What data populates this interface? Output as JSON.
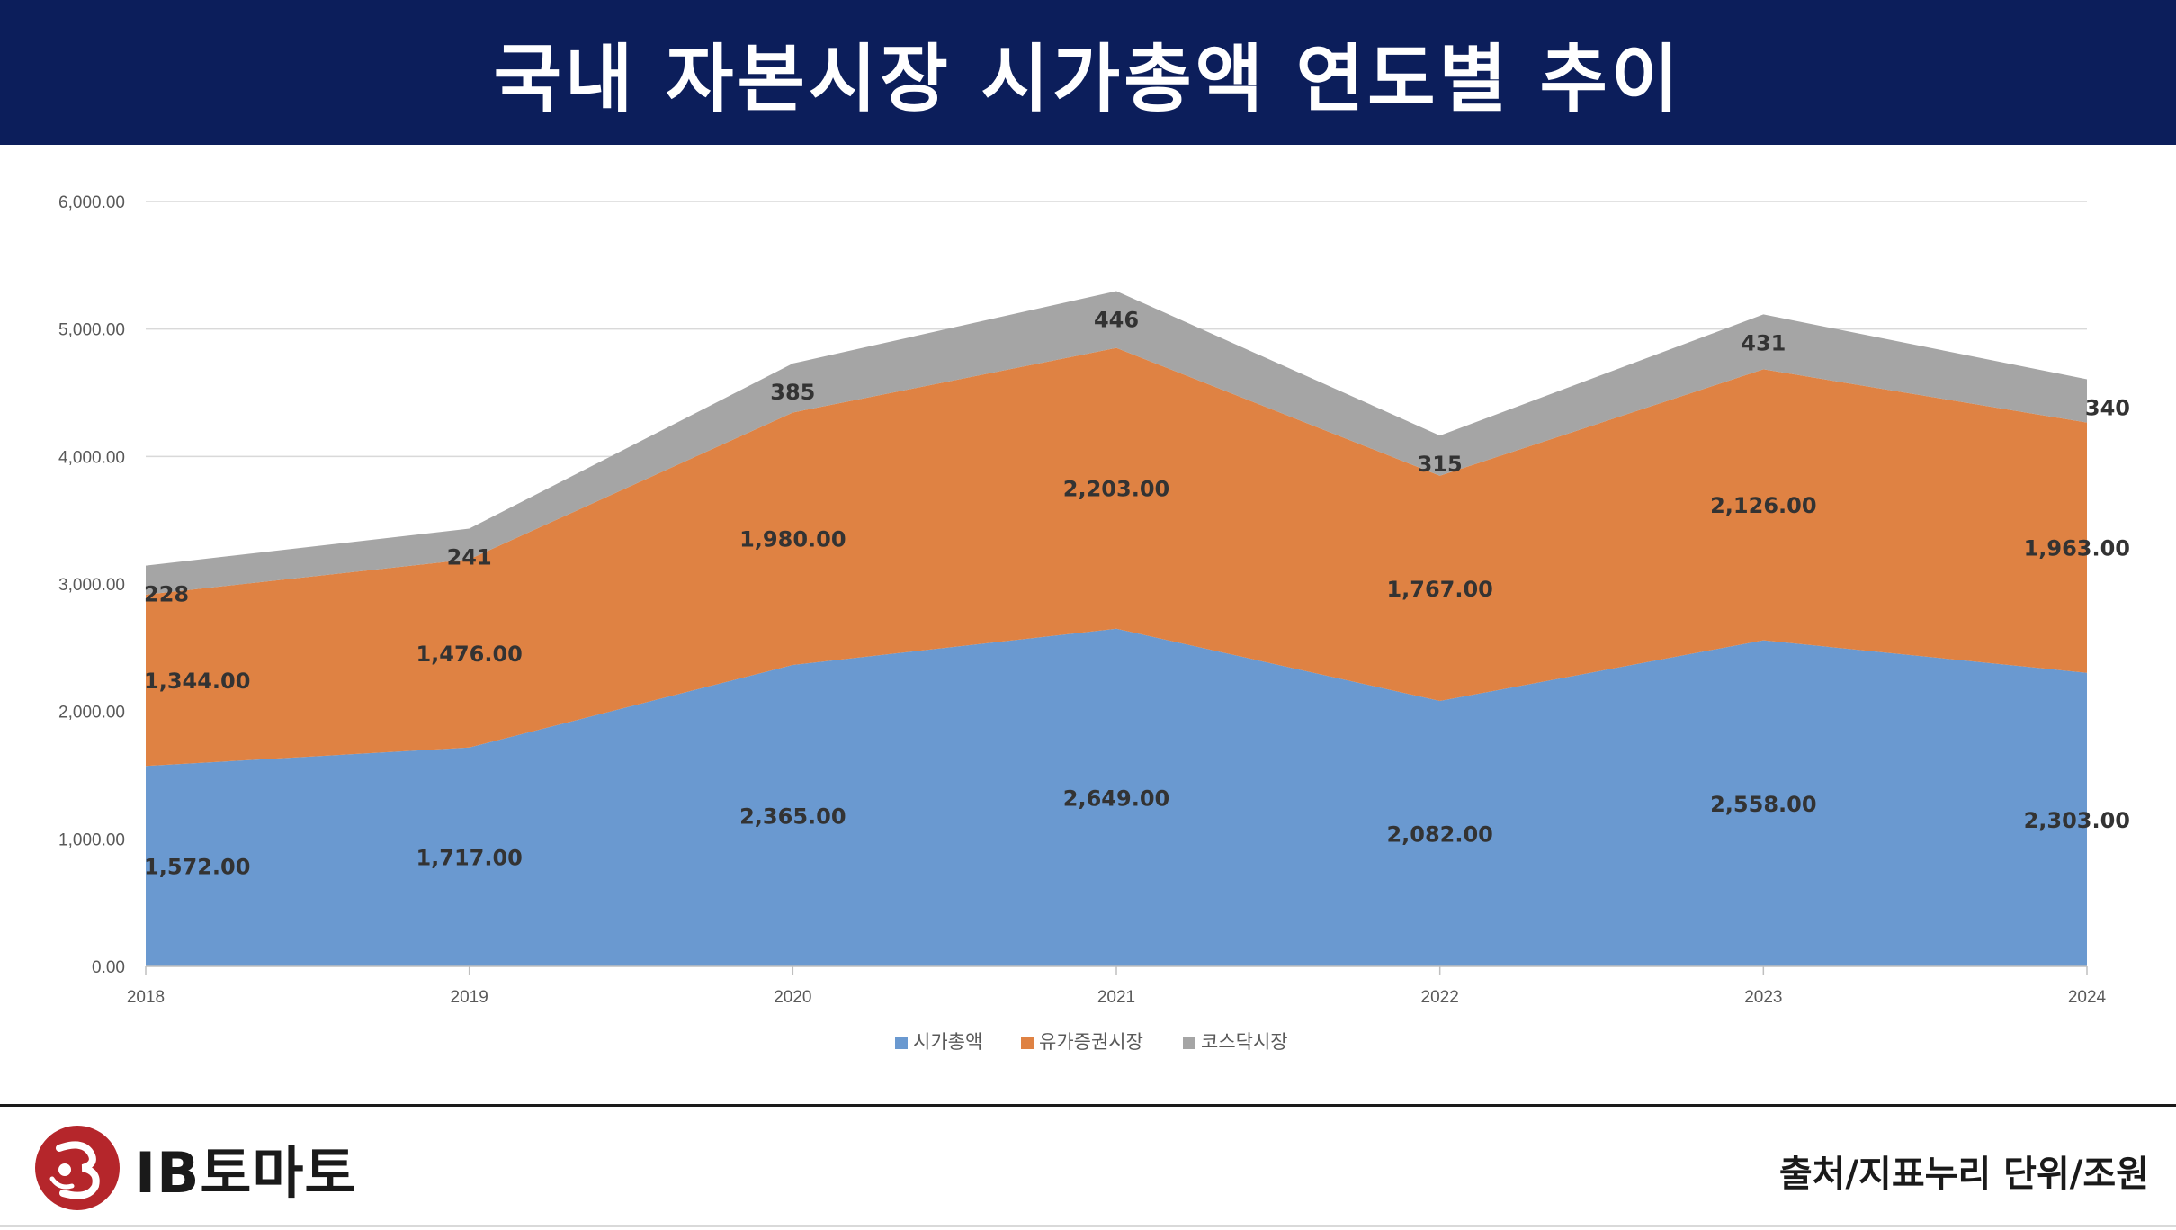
{
  "header": {
    "title": "국내 자본시장 시가총액 연도별 추이"
  },
  "footer": {
    "logo_text": "IB토마토",
    "source_note": "출처/지표누리 단위/조원"
  },
  "colors": {
    "title_bar": "#0c1e5b",
    "series_1": "#6a99d0",
    "series_2": "#df8243",
    "series_3": "#a5a5a5",
    "logo_red": "#b5262b"
  },
  "chart_data": {
    "type": "area",
    "stacked": true,
    "title": "",
    "xlabel": "",
    "ylabel": "",
    "x": [
      "2018",
      "2019",
      "2020",
      "2021",
      "2022",
      "2023",
      "2024"
    ],
    "ylim": [
      0,
      6000
    ],
    "y_ticks": [
      0,
      1000,
      2000,
      3000,
      4000,
      5000,
      6000
    ],
    "y_tick_labels": [
      "0.00",
      "1,000.00",
      "2,000.00",
      "3,000.00",
      "4,000.00",
      "5,000.00",
      "6,000.00"
    ],
    "grid": true,
    "legend_position": "bottom",
    "series": [
      {
        "name": "시가총액",
        "values": [
          1572,
          1717,
          2365,
          2649,
          2082,
          2558,
          2303
        ],
        "labels": [
          "1,572.00",
          "1,717.00",
          "2,365.00",
          "2,649.00",
          "2,082.00",
          "2,558.00",
          "2,303.00"
        ]
      },
      {
        "name": "유가증권시장",
        "values": [
          1344,
          1476,
          1980,
          2203,
          1767,
          2126,
          1963
        ],
        "labels": [
          "1,344.00",
          "1,476.00",
          "1,980.00",
          "2,203.00",
          "1,767.00",
          "2,126.00",
          "1,963.00"
        ]
      },
      {
        "name": "코스닥시장",
        "values": [
          228,
          241,
          385,
          446,
          315,
          431,
          340
        ],
        "labels": [
          "228",
          "241",
          "385",
          "446",
          "315",
          "431",
          "340"
        ]
      }
    ]
  }
}
